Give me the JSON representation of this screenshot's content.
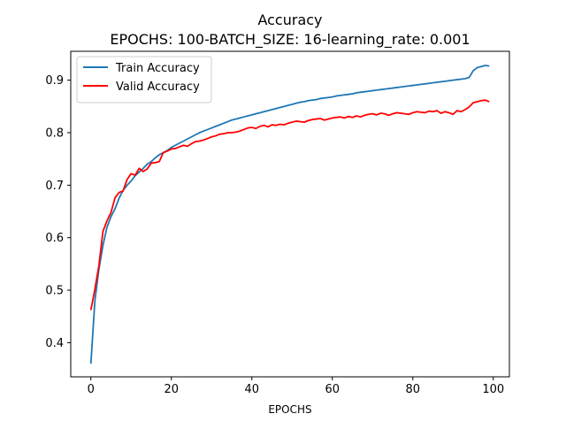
{
  "chart_data": {
    "type": "line",
    "title": "Accuracy",
    "subtitle": "EPOCHS: 100-BATCH_SIZE: 16-learning_rate: 0.001",
    "xlabel": "EPOCHS",
    "ylabel": "",
    "xlim": [
      -5,
      104
    ],
    "ylim": [
      0.335,
      0.955
    ],
    "x_ticks": [
      0,
      20,
      40,
      60,
      80,
      100
    ],
    "y_ticks": [
      0.4,
      0.5,
      0.6,
      0.7,
      0.8,
      0.9
    ],
    "x_tick_labels": [
      "0",
      "20",
      "40",
      "60",
      "80",
      "100"
    ],
    "y_tick_labels": [
      "0.4",
      "0.5",
      "0.6",
      "0.7",
      "0.8",
      "0.9"
    ],
    "grid": false,
    "legend_position": "top-left",
    "series": [
      {
        "name": "Train Accuracy",
        "color": "#1f77b4",
        "values": [
          0.36,
          0.48,
          0.54,
          0.585,
          0.62,
          0.64,
          0.655,
          0.675,
          0.69,
          0.7,
          0.708,
          0.718,
          0.725,
          0.732,
          0.74,
          0.745,
          0.752,
          0.758,
          0.762,
          0.766,
          0.772,
          0.776,
          0.78,
          0.784,
          0.788,
          0.792,
          0.796,
          0.8,
          0.803,
          0.806,
          0.809,
          0.812,
          0.815,
          0.818,
          0.821,
          0.824,
          0.826,
          0.828,
          0.83,
          0.832,
          0.834,
          0.836,
          0.838,
          0.84,
          0.842,
          0.844,
          0.846,
          0.848,
          0.85,
          0.852,
          0.854,
          0.856,
          0.858,
          0.859,
          0.861,
          0.862,
          0.863,
          0.865,
          0.866,
          0.867,
          0.868,
          0.87,
          0.871,
          0.872,
          0.873,
          0.874,
          0.876,
          0.877,
          0.878,
          0.879,
          0.88,
          0.881,
          0.882,
          0.883,
          0.884,
          0.885,
          0.886,
          0.887,
          0.888,
          0.889,
          0.89,
          0.891,
          0.892,
          0.893,
          0.894,
          0.895,
          0.896,
          0.897,
          0.898,
          0.899,
          0.9,
          0.901,
          0.902,
          0.903,
          0.905,
          0.918,
          0.924,
          0.926,
          0.928,
          0.927
        ]
      },
      {
        "name": "Valid Accuracy",
        "color": "#ff0000",
        "values": [
          0.462,
          0.502,
          0.547,
          0.612,
          0.632,
          0.648,
          0.676,
          0.686,
          0.689,
          0.711,
          0.722,
          0.719,
          0.732,
          0.726,
          0.731,
          0.742,
          0.743,
          0.745,
          0.762,
          0.765,
          0.769,
          0.77,
          0.773,
          0.776,
          0.774,
          0.779,
          0.783,
          0.784,
          0.786,
          0.789,
          0.792,
          0.794,
          0.797,
          0.798,
          0.8,
          0.8,
          0.801,
          0.803,
          0.806,
          0.809,
          0.81,
          0.808,
          0.812,
          0.814,
          0.811,
          0.815,
          0.814,
          0.816,
          0.815,
          0.818,
          0.82,
          0.822,
          0.821,
          0.82,
          0.823,
          0.825,
          0.826,
          0.827,
          0.824,
          0.826,
          0.828,
          0.829,
          0.83,
          0.828,
          0.831,
          0.829,
          0.832,
          0.83,
          0.833,
          0.835,
          0.836,
          0.834,
          0.837,
          0.836,
          0.833,
          0.836,
          0.838,
          0.837,
          0.836,
          0.835,
          0.838,
          0.84,
          0.839,
          0.838,
          0.841,
          0.84,
          0.842,
          0.837,
          0.84,
          0.838,
          0.835,
          0.842,
          0.84,
          0.844,
          0.849,
          0.857,
          0.859,
          0.861,
          0.862,
          0.859
        ]
      }
    ]
  }
}
